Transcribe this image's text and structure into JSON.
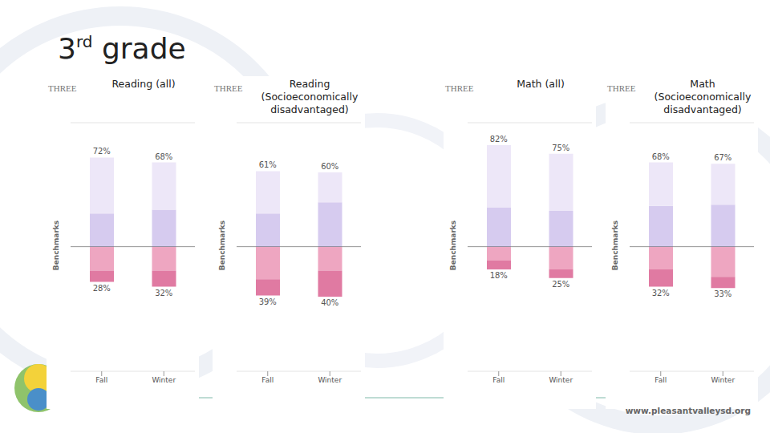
{
  "title": "3rd grade",
  "footer": "www.pleasantvalleysd.org",
  "chart_data": [
    {
      "type": "bar",
      "stacked": true,
      "header": "THREE",
      "title": "Reading (all)",
      "ylabel": "Benchmarks",
      "categories": [
        "Fall",
        "Winter"
      ],
      "ylim": [
        0,
        100
      ],
      "yticks": [
        0,
        20,
        40,
        60,
        80,
        100
      ],
      "y2lim": [
        0,
        100
      ],
      "y2ticks": [
        0,
        20,
        40,
        60,
        80,
        100
      ],
      "grid": true,
      "tick_labels": "x",
      "series": [
        {
          "color": "#d6cbef",
          "values": [
            27,
            30
          ]
        },
        {
          "color": "#ede7f8",
          "values": [
            45,
            38
          ]
        },
        {
          "color": "#eea6c1",
          "values": [
            19,
            19
          ],
          "axis": "y2"
        },
        {
          "color": "#e07aa2",
          "values": [
            9,
            13
          ],
          "axis": "y2"
        }
      ],
      "totals": {
        "y": {
          "values": [
            72,
            68
          ],
          "value_labels": [
            "72%",
            "68%"
          ]
        },
        "y2": {
          "values": [
            28,
            32
          ],
          "value_labels": [
            "28%",
            "32%"
          ]
        }
      }
    },
    {
      "type": "bar",
      "stacked": true,
      "header": "THREE",
      "title": "Reading (Socioeconomically disadvantaged)",
      "ylabel": "Benchmarks",
      "categories": [
        "Fall",
        "Winter"
      ],
      "ylim": [
        0,
        100
      ],
      "yticks": [
        0,
        20,
        40,
        60,
        80,
        100
      ],
      "y2lim": [
        0,
        100
      ],
      "y2ticks": [
        0,
        20,
        40,
        60,
        80,
        100
      ],
      "grid": true,
      "tick_labels": "x",
      "series": [
        {
          "color": "#d6cbef",
          "values": [
            27,
            36
          ]
        },
        {
          "color": "#ede7f8",
          "values": [
            34,
            24
          ]
        },
        {
          "color": "#eea6c1",
          "values": [
            26,
            19
          ],
          "axis": "y2"
        },
        {
          "color": "#e07aa2",
          "values": [
            13,
            21
          ],
          "axis": "y2"
        }
      ],
      "totals": {
        "y": {
          "values": [
            61,
            60
          ],
          "value_labels": [
            "61%",
            "60%"
          ]
        },
        "y2": {
          "values": [
            39,
            40
          ],
          "value_labels": [
            "39%",
            "40%"
          ]
        }
      }
    },
    {
      "type": "bar",
      "stacked": true,
      "header": "THREE",
      "title": "Math (all)",
      "ylabel": "Benchmarks",
      "categories": [
        "Fall",
        "Winter"
      ],
      "ylim": [
        0,
        100
      ],
      "yticks": [
        0,
        20,
        40,
        60,
        80,
        100
      ],
      "y2lim": [
        0,
        100
      ],
      "y2ticks": [
        0,
        20,
        40,
        60,
        80,
        100
      ],
      "grid": true,
      "tick_labels": "x",
      "series": [
        {
          "color": "#d6cbef",
          "values": [
            32,
            29
          ]
        },
        {
          "color": "#ede7f8",
          "values": [
            50,
            46
          ]
        },
        {
          "color": "#eea6c1",
          "values": [
            11,
            18
          ],
          "axis": "y2"
        },
        {
          "color": "#e07aa2",
          "values": [
            7,
            7
          ],
          "axis": "y2"
        }
      ],
      "totals": {
        "y": {
          "values": [
            82,
            75
          ],
          "value_labels": [
            "82%",
            "75%"
          ]
        },
        "y2": {
          "values": [
            18,
            25
          ],
          "value_labels": [
            "18%",
            "25%"
          ]
        }
      }
    },
    {
      "type": "bar",
      "stacked": true,
      "header": "THREE",
      "title": "Math (Socioeconomically disadvantaged)",
      "ylabel": "Benchmarks",
      "categories": [
        "Fall",
        "Winter"
      ],
      "ylim": [
        0,
        100
      ],
      "yticks": [
        0,
        20,
        40,
        60,
        80,
        100
      ],
      "y2lim": [
        0,
        100
      ],
      "y2ticks": [
        0,
        20,
        40,
        60,
        80,
        100
      ],
      "grid": true,
      "tick_labels": "x",
      "series": [
        {
          "color": "#d6cbef",
          "values": [
            33,
            34
          ]
        },
        {
          "color": "#ede7f8",
          "values": [
            35,
            33
          ]
        },
        {
          "color": "#eea6c1",
          "values": [
            18,
            24
          ],
          "axis": "y2"
        },
        {
          "color": "#e07aa2",
          "values": [
            14,
            9
          ],
          "axis": "y2"
        }
      ],
      "totals": {
        "y": {
          "values": [
            68,
            67
          ],
          "value_labels": [
            "68%",
            "67%"
          ]
        },
        "y2": {
          "values": [
            32,
            33
          ],
          "value_labels": [
            "32%",
            "33%"
          ]
        }
      }
    }
  ]
}
